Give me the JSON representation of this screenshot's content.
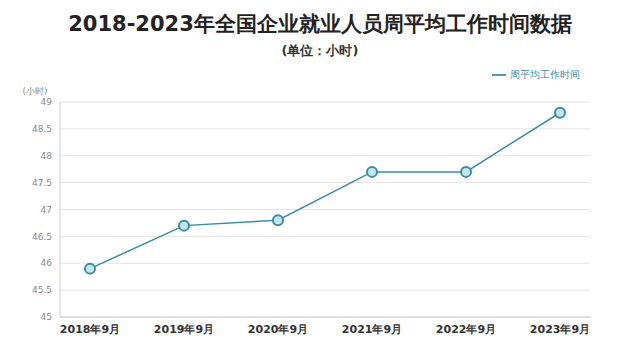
{
  "chart_data": {
    "type": "line",
    "title": "2018-2023年全国企业就业人员周平均工作时间数据",
    "subtitle": "(单位：小时)",
    "y_label": "(小时)",
    "categories": [
      "2018年9月",
      "2019年9月",
      "2020年9月",
      "2021年9月",
      "2022年9月",
      "2023年9月"
    ],
    "series": [
      {
        "name": "周平均工作时间",
        "color": "#3a8ca6",
        "values": [
          45.9,
          46.7,
          46.8,
          47.7,
          47.7,
          48.8
        ],
        "marker": "circle"
      }
    ],
    "ylim": [
      45,
      49
    ],
    "yticks": [
      45,
      45.5,
      46,
      46.5,
      47,
      47.5,
      48,
      48.5,
      49
    ],
    "grid": true,
    "legend": "top-right"
  }
}
